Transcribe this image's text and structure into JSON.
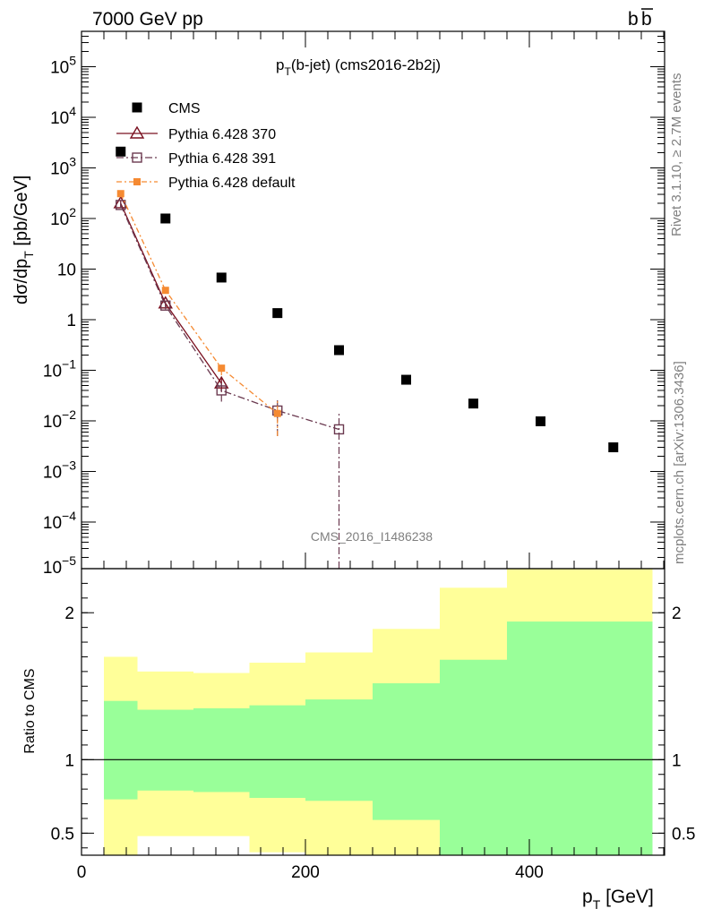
{
  "header": {
    "left": "7000 GeV pp",
    "right_base": "b",
    "right_bar": "b"
  },
  "plot_title": {
    "base": "p",
    "sub": "T",
    "rest": "(b-jet) (cms2016-2b2j)"
  },
  "y_label": {
    "head": "dσ/dp",
    "sub": "T",
    "tail": " [pb/GeV]"
  },
  "x_label": {
    "base": "p",
    "sub": "T",
    "tail": " [GeV]"
  },
  "ratio_label": "Ratio to CMS",
  "side_text": {
    "rivet": "Rivet 3.1.10, ≥ 2.7M events",
    "mcplots": "mcplots.cern.ch [arXiv:1306.3436]"
  },
  "analysis_id": "CMS_2016_I1486238",
  "colors": {
    "data": "#000000",
    "p370": "#7a1020",
    "p391": "#6b3a50",
    "pdef": "#f58a32",
    "band_outer": "#ffff99",
    "band_inner": "#99ff99",
    "grey_text": "#7f7f7f"
  },
  "chart_data": {
    "type": "scatter",
    "title": "pT(b-jet) (cms2016-2b2j)",
    "xlabel": "pT [GeV]",
    "ylabel": "dσ/dpT [pb/GeV]",
    "xlim": [
      0,
      520
    ],
    "ylim": [
      1.2e-05,
      500000
    ],
    "yscale": "log",
    "x_tick_labels": [
      "0",
      "200",
      "400"
    ],
    "y_tick_labels": [
      {
        "value": 1e-05,
        "mant": "10",
        "exp": "−5"
      },
      {
        "value": 0.0001,
        "mant": "10",
        "exp": "−4"
      },
      {
        "value": 0.001,
        "mant": "10",
        "exp": "−3"
      },
      {
        "value": 0.01,
        "mant": "10",
        "exp": "−2"
      },
      {
        "value": 0.1,
        "mant": "10",
        "exp": "−1"
      },
      {
        "value": 1,
        "mant": "1",
        "exp": ""
      },
      {
        "value": 10,
        "mant": "10",
        "exp": ""
      },
      {
        "value": 100,
        "mant": "10",
        "exp": "2"
      },
      {
        "value": 1000,
        "mant": "10",
        "exp": "3"
      },
      {
        "value": 10000,
        "mant": "10",
        "exp": "4"
      },
      {
        "value": 100000,
        "mant": "10",
        "exp": "5"
      }
    ],
    "bins": [
      [
        20,
        50
      ],
      [
        50,
        100
      ],
      [
        100,
        150
      ],
      [
        150,
        200
      ],
      [
        200,
        260
      ],
      [
        260,
        320
      ],
      [
        320,
        380
      ],
      [
        380,
        440
      ],
      [
        440,
        510
      ]
    ],
    "series": [
      {
        "name": "CMS",
        "key": "data",
        "x": [
          35,
          75,
          125,
          175,
          230,
          290,
          350,
          410,
          475
        ],
        "y": [
          2100,
          100,
          6.8,
          1.35,
          0.25,
          0.065,
          0.022,
          0.0098,
          0.003
        ]
      },
      {
        "name": "Pythia 6.428 370",
        "key": "p370",
        "x": [
          35,
          75,
          125
        ],
        "y": [
          200,
          2.1,
          0.055
        ],
        "err_lo": [
          30,
          0.3,
          0.018
        ],
        "err_hi": [
          30,
          0.3,
          0.018
        ]
      },
      {
        "name": "Pythia 6.428 391",
        "key": "p391",
        "x": [
          35,
          75,
          125,
          175,
          230
        ],
        "y": [
          185,
          1.9,
          0.04,
          0.016,
          0.0068
        ],
        "err_lo": [
          25,
          0.3,
          0.016,
          0.011,
          0.0068
        ],
        "err_hi": [
          25,
          0.3,
          0.016,
          0.012,
          0.007
        ]
      },
      {
        "name": "Pythia 6.428 default",
        "key": "pdef",
        "x": [
          35,
          75,
          125,
          175
        ],
        "y": [
          310,
          3.8,
          0.11,
          0.014
        ],
        "err_lo": [
          40,
          0.4,
          0.03,
          0.009
        ],
        "err_hi": [
          40,
          0.4,
          0.03,
          0.012
        ]
      }
    ],
    "ratio": {
      "ylabel": "Ratio to CMS",
      "ylim": [
        0.35,
        2.3
      ],
      "tick_labels": [
        {
          "value": 0.5,
          "label": "0.5"
        },
        {
          "value": 1,
          "label": "1"
        },
        {
          "value": 2,
          "label": "2"
        }
      ],
      "band_inner": [
        [
          0.73,
          1.4
        ],
        [
          0.79,
          1.34
        ],
        [
          0.78,
          1.35
        ],
        [
          0.74,
          1.37
        ],
        [
          0.72,
          1.41
        ],
        [
          0.59,
          1.52
        ],
        [
          0.35,
          1.68
        ],
        [
          0.35,
          1.94
        ],
        [
          0.35,
          1.94
        ]
      ],
      "band_outer": [
        [
          0.35,
          1.7
        ],
        [
          0.48,
          1.6
        ],
        [
          0.48,
          1.59
        ],
        [
          0.37,
          1.66
        ],
        [
          0.35,
          1.73
        ],
        [
          0.35,
          1.89
        ],
        [
          0.35,
          2.17
        ],
        [
          0.35,
          2.3
        ],
        [
          0.35,
          2.3
        ]
      ]
    }
  }
}
